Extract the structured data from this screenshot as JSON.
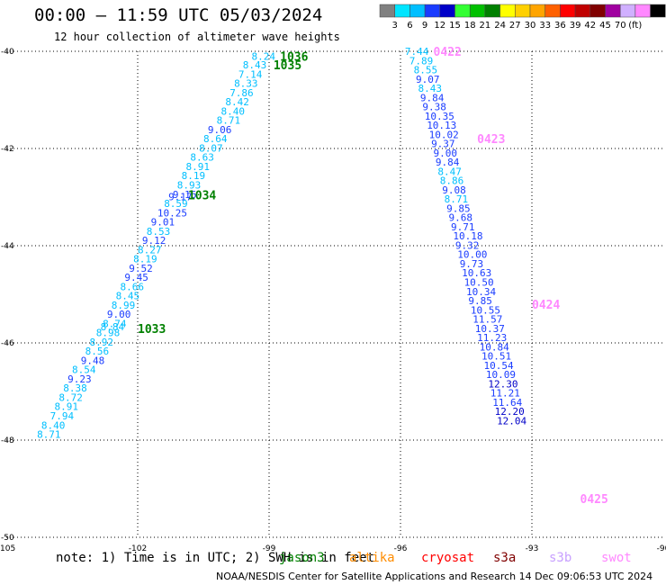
{
  "header": {
    "title": "00:00 – 11:59 UTC 05/03/2024",
    "subtitle": "12 hour collection of altimeter wave heights"
  },
  "legend": {
    "unit": "(ft)",
    "colors": [
      "#808080",
      "#00e5ff",
      "#00bfff",
      "#1a3cff",
      "#0000c8",
      "#33ff33",
      "#00c000",
      "#008000",
      "#ffff00",
      "#ffd000",
      "#ffa500",
      "#ff6000",
      "#ff0000",
      "#c00000",
      "#800000",
      "#a000a0",
      "#d0b0ff",
      "#ff88ff",
      "#000000"
    ],
    "labels": [
      "3",
      "6",
      "9",
      "12",
      "15",
      "18",
      "21",
      "24",
      "27",
      "30",
      "33",
      "36",
      "39",
      "42",
      "45",
      "70"
    ]
  },
  "chart_data": {
    "type": "scatter",
    "title": "00:00 – 11:59 UTC 05/03/2024",
    "subtitle": "12 hour collection of altimeter wave heights",
    "xlabel": "",
    "ylabel": "",
    "xlim": [
      -105,
      -90
    ],
    "ylim": [
      -50,
      -40
    ],
    "x_ticks": [
      "-105",
      "-102",
      "-99",
      "-96",
      "-93",
      "-90"
    ],
    "y_ticks": [
      "-40",
      "-42",
      "-44",
      "-46",
      "-48",
      "-50"
    ],
    "grid": true,
    "tracks": [
      {
        "satellite": "jason3",
        "color": "#008000",
        "time_labels": [
          {
            "text": "1036",
            "lon": -98.75,
            "lat": -40.1
          },
          {
            "text": "1035",
            "lon": -98.9,
            "lat": -40.28
          },
          {
            "text": "1034",
            "lon": -100.85,
            "lat": -42.95
          },
          {
            "text": "1033",
            "lon": -102.0,
            "lat": -45.7
          }
        ],
        "points": [
          {
            "v": "8.24",
            "lon": -99.4,
            "lat": -40.1
          },
          {
            "v": "8.43",
            "lon": -99.6,
            "lat": -40.28
          },
          {
            "v": "7.14",
            "lon": -99.7,
            "lat": -40.47
          },
          {
            "v": "8.33",
            "lon": -99.8,
            "lat": -40.66
          },
          {
            "v": "7.86",
            "lon": -99.9,
            "lat": -40.85
          },
          {
            "v": "8.42",
            "lon": -100.0,
            "lat": -41.04
          },
          {
            "v": "8.40",
            "lon": -100.1,
            "lat": -41.23
          },
          {
            "v": "8.71",
            "lon": -100.2,
            "lat": -41.42
          },
          {
            "v": "9.06",
            "lon": -100.4,
            "lat": -41.61
          },
          {
            "v": "8.64",
            "lon": -100.5,
            "lat": -41.8
          },
          {
            "v": "8.07",
            "lon": -100.6,
            "lat": -41.99
          },
          {
            "v": "8.63",
            "lon": -100.8,
            "lat": -42.18
          },
          {
            "v": "8.91",
            "lon": -100.9,
            "lat": -42.37
          },
          {
            "v": "8.19",
            "lon": -101.0,
            "lat": -42.56
          },
          {
            "v": "8.93",
            "lon": -101.1,
            "lat": -42.75
          },
          {
            "v": "9.16",
            "lon": -101.2,
            "lat": -42.94
          },
          {
            "v": "9.17",
            "lon": -101.3,
            "lat": -42.99
          },
          {
            "v": "8.59",
            "lon": -101.4,
            "lat": -43.13
          },
          {
            "v": "10.25",
            "lon": -101.55,
            "lat": -43.32
          },
          {
            "v": "9.01",
            "lon": -101.7,
            "lat": -43.51
          },
          {
            "v": "8.53",
            "lon": -101.8,
            "lat": -43.7
          },
          {
            "v": "9.12",
            "lon": -101.9,
            "lat": -43.89
          },
          {
            "v": "8.27",
            "lon": -102.0,
            "lat": -44.08
          },
          {
            "v": "8.19",
            "lon": -102.1,
            "lat": -44.27
          },
          {
            "v": "9.52",
            "lon": -102.2,
            "lat": -44.46
          },
          {
            "v": "9.45",
            "lon": -102.3,
            "lat": -44.65
          },
          {
            "v": "8.66",
            "lon": -102.4,
            "lat": -44.84
          },
          {
            "v": "8.45",
            "lon": -102.5,
            "lat": -45.03
          },
          {
            "v": "8.99",
            "lon": -102.6,
            "lat": -45.22
          },
          {
            "v": "9.00",
            "lon": -102.7,
            "lat": -45.41
          },
          {
            "v": "8.74",
            "lon": -102.8,
            "lat": -45.6
          },
          {
            "v": "8.84",
            "lon": -102.85,
            "lat": -45.67
          },
          {
            "v": "8.98",
            "lon": -102.95,
            "lat": -45.79
          },
          {
            "v": "8.92",
            "lon": -103.1,
            "lat": -45.98
          },
          {
            "v": "8.56",
            "lon": -103.2,
            "lat": -46.17
          },
          {
            "v": "9.48",
            "lon": -103.3,
            "lat": -46.36
          },
          {
            "v": "8.54",
            "lon": -103.5,
            "lat": -46.55
          },
          {
            "v": "9.23",
            "lon": -103.6,
            "lat": -46.74
          },
          {
            "v": "8.38",
            "lon": -103.7,
            "lat": -46.93
          },
          {
            "v": "8.72",
            "lon": -103.8,
            "lat": -47.12
          },
          {
            "v": "8.91",
            "lon": -103.9,
            "lat": -47.31
          },
          {
            "v": "7.94",
            "lon": -104.0,
            "lat": -47.5
          },
          {
            "v": "8.40",
            "lon": -104.2,
            "lat": -47.69
          },
          {
            "v": "8.71",
            "lon": -104.3,
            "lat": -47.88
          }
        ]
      },
      {
        "satellite": "swot",
        "color": "#ff88ff",
        "time_labels": [
          {
            "text": "0422",
            "lon": -95.25,
            "lat": -40.0
          },
          {
            "text": "0423",
            "lon": -94.25,
            "lat": -41.8
          },
          {
            "text": "0424",
            "lon": -93.0,
            "lat": -45.2
          },
          {
            "text": "0425",
            "lon": -91.9,
            "lat": -49.2
          }
        ],
        "points": [
          {
            "v": "7.44",
            "lon": -95.9,
            "lat": -40.0
          },
          {
            "v": "7.89",
            "lon": -95.8,
            "lat": -40.19
          },
          {
            "v": "8.55",
            "lon": -95.7,
            "lat": -40.38
          },
          {
            "v": "9.07",
            "lon": -95.65,
            "lat": -40.57
          },
          {
            "v": "8.43",
            "lon": -95.6,
            "lat": -40.76
          },
          {
            "v": "9.84",
            "lon": -95.55,
            "lat": -40.95
          },
          {
            "v": "9.38",
            "lon": -95.5,
            "lat": -41.14
          },
          {
            "v": "10.35",
            "lon": -95.45,
            "lat": -41.33
          },
          {
            "v": "10.13",
            "lon": -95.4,
            "lat": -41.52
          },
          {
            "v": "10.02",
            "lon": -95.35,
            "lat": -41.71
          },
          {
            "v": "9.37",
            "lon": -95.3,
            "lat": -41.9
          },
          {
            "v": "9.00",
            "lon": -95.25,
            "lat": -42.09
          },
          {
            "v": "9.84",
            "lon": -95.2,
            "lat": -42.28
          },
          {
            "v": "8.47",
            "lon": -95.15,
            "lat": -42.47
          },
          {
            "v": "8.86",
            "lon": -95.1,
            "lat": -42.66
          },
          {
            "v": "9.08",
            "lon": -95.05,
            "lat": -42.85
          },
          {
            "v": "8.71",
            "lon": -95.0,
            "lat": -43.04
          },
          {
            "v": "9.85",
            "lon": -94.95,
            "lat": -43.23
          },
          {
            "v": "9.68",
            "lon": -94.9,
            "lat": -43.42
          },
          {
            "v": "9.71",
            "lon": -94.85,
            "lat": -43.61
          },
          {
            "v": "10.18",
            "lon": -94.8,
            "lat": -43.8
          },
          {
            "v": "9.32",
            "lon": -94.75,
            "lat": -43.99
          },
          {
            "v": "10.00",
            "lon": -94.7,
            "lat": -44.18
          },
          {
            "v": "9.73",
            "lon": -94.65,
            "lat": -44.37
          },
          {
            "v": "10.63",
            "lon": -94.6,
            "lat": -44.56
          },
          {
            "v": "10.50",
            "lon": -94.55,
            "lat": -44.75
          },
          {
            "v": "10.34",
            "lon": -94.5,
            "lat": -44.94
          },
          {
            "v": "9.85",
            "lon": -94.45,
            "lat": -45.13
          },
          {
            "v": "10.55",
            "lon": -94.4,
            "lat": -45.32
          },
          {
            "v": "11.57",
            "lon": -94.35,
            "lat": -45.51
          },
          {
            "v": "10.37",
            "lon": -94.3,
            "lat": -45.7
          },
          {
            "v": "11.23",
            "lon": -94.25,
            "lat": -45.89
          },
          {
            "v": "10.84",
            "lon": -94.2,
            "lat": -46.08
          },
          {
            "v": "10.51",
            "lon": -94.15,
            "lat": -46.27
          },
          {
            "v": "10.54",
            "lon": -94.1,
            "lat": -46.46
          },
          {
            "v": "10.09",
            "lon": -94.05,
            "lat": -46.65
          },
          {
            "v": "12.30",
            "lon": -94.0,
            "lat": -46.84
          },
          {
            "v": "11.21",
            "lon": -93.95,
            "lat": -47.03
          },
          {
            "v": "11.64",
            "lon": -93.9,
            "lat": -47.22
          },
          {
            "v": "12.20",
            "lon": -93.85,
            "lat": -47.41
          },
          {
            "v": "12.04",
            "lon": -93.8,
            "lat": -47.6
          }
        ]
      }
    ]
  },
  "footer": {
    "note": "note: 1) Time is in UTC; 2) SWH is in feet",
    "satellites": [
      {
        "name": "jason3",
        "color": "#008000"
      },
      {
        "name": "altika",
        "color": "#ff8c00"
      },
      {
        "name": "cryosat",
        "color": "#ff0000"
      },
      {
        "name": "s3a",
        "color": "#800000"
      },
      {
        "name": "s3b",
        "color": "#c8a0ff"
      },
      {
        "name": "swot",
        "color": "#ff88ff"
      }
    ],
    "credit": "NOAA/NESDIS Center for Satellite Applications and Research   14 Dec 09:06:53 UTC 2024"
  }
}
